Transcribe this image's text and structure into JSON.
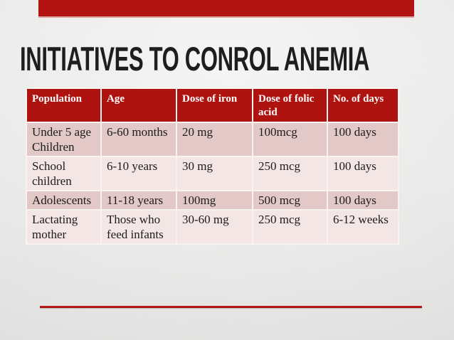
{
  "slide": {
    "title": "INITIATIVES TO CONROL ANEMIA"
  },
  "table": {
    "headers": [
      "Population",
      "Age",
      "Dose of iron",
      "Dose of folic acid",
      "No. of days"
    ],
    "rows": [
      [
        "Under 5 age Children",
        "6-60 months",
        "20 mg",
        "100mcg",
        "100 days"
      ],
      [
        "School children",
        "6-10 years",
        "30 mg",
        "250 mcg",
        "100 days"
      ],
      [
        "Adolescents",
        "11-18 years",
        "100mg",
        "500 mcg",
        "100 days"
      ],
      [
        "Lactating mother",
        "Those who feed infants",
        "30-60 mg",
        "250 mcg",
        "6-12 weeks"
      ]
    ]
  },
  "colors": {
    "accent_red": "#b11411",
    "header_bg": "#ae1310",
    "row_odd_bg": "#e2c8c7",
    "row_even_bg": "#f3e6e4",
    "title_color": "#1e1e1e",
    "background": "#eaeae9"
  }
}
